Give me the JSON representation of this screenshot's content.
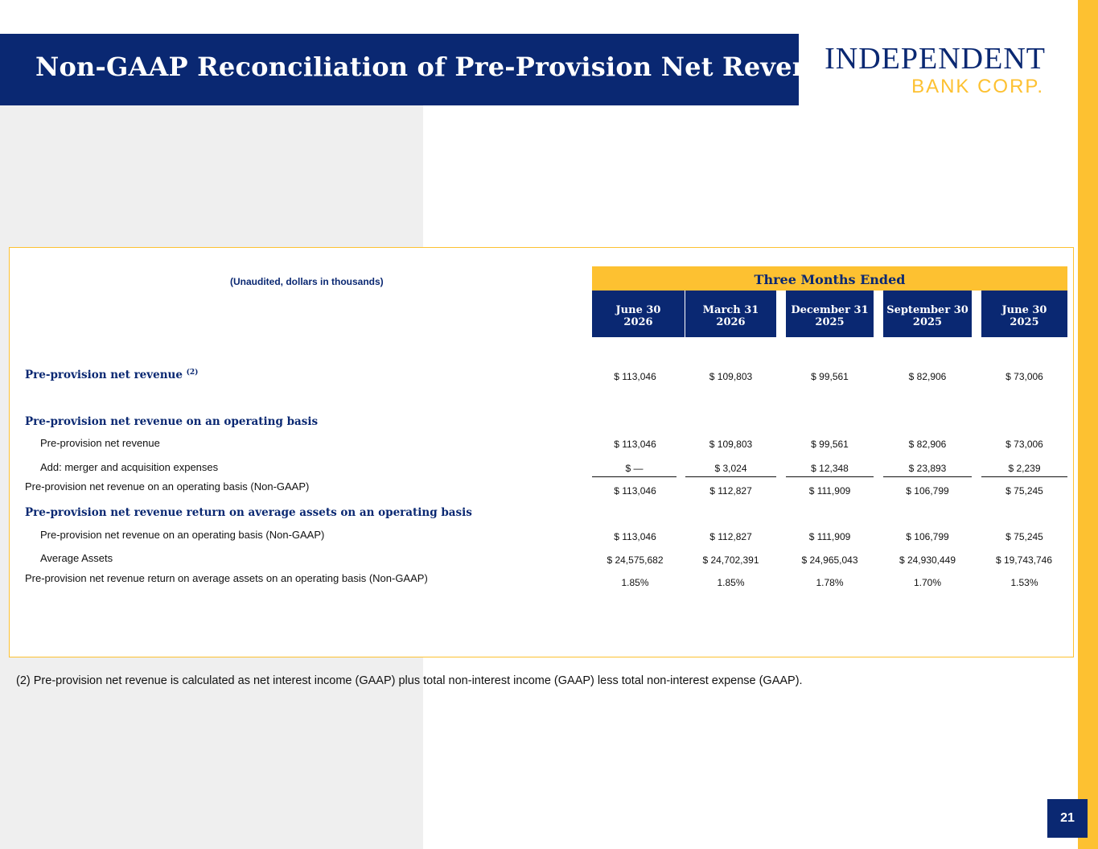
{
  "header": {
    "title": "Non-GAAP Reconciliation of Pre-Provision Net Revenue",
    "logo_line1": "INDEPENDENT",
    "logo_line2": "BANK CORP."
  },
  "table": {
    "unaudited_note": "(Unaudited, dollars in thousands)",
    "period_header": "Three Months Ended",
    "columns": [
      {
        "line1": "June 30",
        "line2": "2026"
      },
      {
        "line1": "March 31",
        "line2": "2026"
      },
      {
        "line1": "December 31",
        "line2": "2025"
      },
      {
        "line1": "September 30",
        "line2": "2025"
      },
      {
        "line1": "June 30",
        "line2": "2025"
      }
    ],
    "rows": [
      {
        "label": "Pre-provision net revenue",
        "sup": "(2)",
        "values": [
          "$ 113,046",
          "$ 109,803",
          "$ 99,561",
          "$ 82,906",
          "$ 73,006"
        ]
      },
      {
        "label": "Pre-provision net revenue on an operating basis"
      },
      {
        "label": "Pre-provision net revenue",
        "values": [
          "$ 113,046",
          "$ 109,803",
          "$ 99,561",
          "$ 82,906",
          "$ 73,006"
        ]
      },
      {
        "label": "Add: merger and acquisition expenses",
        "values": [
          "$ —",
          "$ 3,024",
          "$ 12,348",
          "$ 23,893",
          "$ 2,239"
        ]
      },
      {
        "label": "Pre-provision net revenue on an operating basis (Non-GAAP)",
        "values": [
          "$ 113,046",
          "$ 112,827",
          "$ 111,909",
          "$ 106,799",
          "$ 75,245"
        ]
      },
      {
        "label": "Pre-provision net revenue return on average assets on an operating basis"
      },
      {
        "label": "Pre-provision net revenue on an operating basis (Non-GAAP)",
        "values": [
          "$ 113,046",
          "$ 112,827",
          "$ 111,909",
          "$ 106,799",
          "$ 75,245"
        ]
      },
      {
        "label": "Average Assets",
        "values": [
          "$ 24,575,682",
          "$ 24,702,391",
          "$ 24,965,043",
          "$ 24,930,449",
          "$ 19,743,746"
        ]
      },
      {
        "label": "Pre-provision net revenue return on average assets on an operating basis (Non-GAAP)",
        "values": [
          "1.85%",
          "1.85%",
          "1.78%",
          "1.70%",
          "1.53%"
        ]
      }
    ]
  },
  "footnote": "(2) Pre-provision net revenue is calculated as net interest income (GAAP) plus total non-interest income (GAAP) less total non-interest expense (GAAP).",
  "page_number": "21",
  "colors": {
    "navy": "#0a2872",
    "gold": "#fdc131",
    "panel_gray": "#efefef"
  }
}
